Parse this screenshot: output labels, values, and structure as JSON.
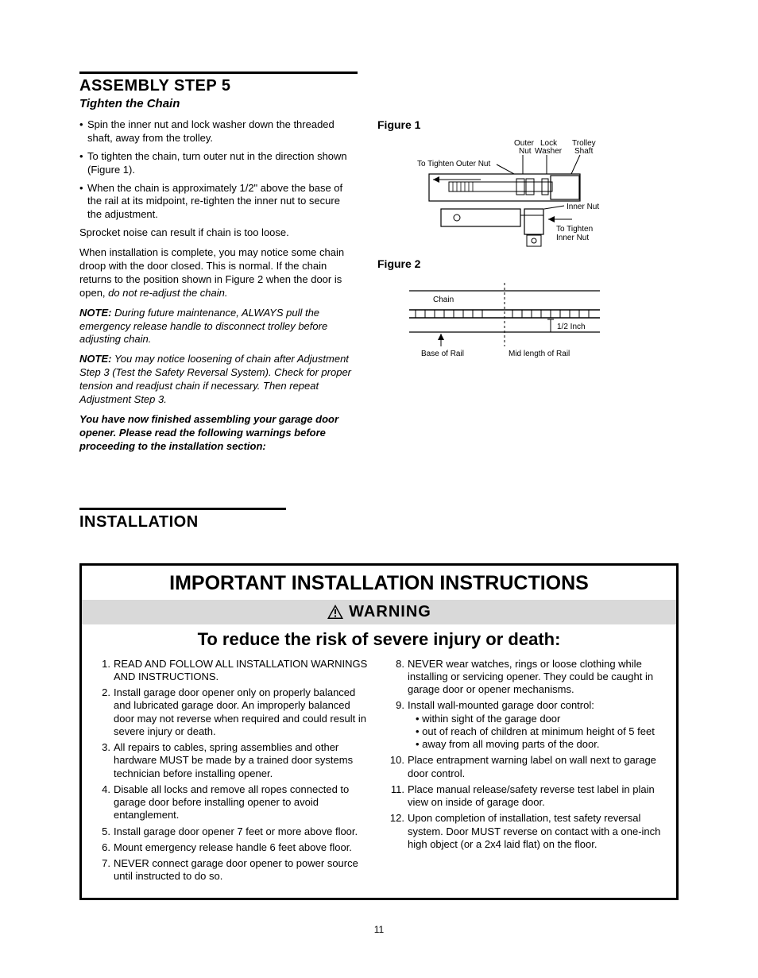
{
  "step": {
    "title": "ASSEMBLY STEP 5",
    "subtitle": "Tighten the Chain",
    "bullets": [
      "Spin the inner nut and lock washer down the threaded shaft, away from the trolley.",
      "To tighten the chain, turn outer nut in the direction shown (Figure 1).",
      "When the chain is approximately 1/2\" above the base of the rail at its midpoint, re-tighten the inner nut to secure the adjustment."
    ],
    "p1": "Sprocket noise can result if chain is too loose.",
    "p2a": "When installation is complete, you may notice some chain droop with the door closed. This is normal. If the chain returns to the position shown in Figure 2 when the door is open, ",
    "p2b": "do not re-adjust the chain.",
    "note1label": "NOTE:",
    "note1": " During future maintenance, ALWAYS pull the emergency release handle to disconnect trolley before adjusting chain.",
    "note2label": "NOTE:",
    "note2": " You may notice loosening of chain after Adjustment Step 3 (Test the Safety Reversal System). Check for proper tension and readjust chain if necessary. Then repeat Adjustment Step 3.",
    "finish": "You have now finished assembling your garage door opener. Please read the following warnings before proceeding to the installation section:"
  },
  "figures": {
    "f1": {
      "label": "Figure 1",
      "outerNut": "Outer\nNut",
      "lockWasher": "Lock\nWasher",
      "trolleyShaft": "Trolley\nShaft",
      "toTightenOuter": "To Tighten Outer Nut",
      "innerNut": "Inner Nut",
      "toTightenInner": "To Tighten\nInner Nut"
    },
    "f2": {
      "label": "Figure 2",
      "chain": "Chain",
      "halfInch": "1/2 Inch",
      "baseOfRail": "Base of Rail",
      "midLength": "Mid length of Rail"
    }
  },
  "installation": {
    "title": "INSTALLATION"
  },
  "warning": {
    "h1": "IMPORTANT INSTALLATION INSTRUCTIONS",
    "barLabel": "WARNING",
    "h2": "To reduce the risk of severe injury or death:",
    "left": [
      {
        "n": "1.",
        "t": "READ AND FOLLOW ALL INSTALLATION WARNINGS AND INSTRUCTIONS."
      },
      {
        "n": "2.",
        "t": "Install garage door opener only on properly balanced and lubricated garage door. An improperly balanced door may not reverse when required and could result in severe injury or death."
      },
      {
        "n": "3.",
        "t": "All repairs to cables, spring assemblies and other hardware MUST be made by a trained door systems technician before installing opener."
      },
      {
        "n": "4.",
        "t": "Disable all locks and remove all ropes connected to garage door before installing opener to avoid entanglement."
      },
      {
        "n": "5.",
        "t": "Install garage door opener 7 feet or more above floor."
      },
      {
        "n": "6.",
        "t": "Mount emergency release handle 6 feet above floor."
      },
      {
        "n": "7.",
        "t": "NEVER connect garage door opener to power source until instructed to do so."
      }
    ],
    "right": [
      {
        "n": "8.",
        "t": "NEVER wear watches, rings or loose clothing while installing or servicing opener. They could be caught in garage door or opener mechanisms."
      },
      {
        "n": "9.",
        "t": "Install wall-mounted garage door control:",
        "sub": [
          "within sight of the garage door",
          "out of reach of children at minimum height of 5 feet",
          "away from all moving parts of the door."
        ]
      },
      {
        "n": "10.",
        "t": "Place entrapment warning label on wall next to garage door control."
      },
      {
        "n": "11.",
        "t": "Place manual release/safety reverse test label in plain view on inside of garage door."
      },
      {
        "n": "12.",
        "t": "Upon completion of installation, test safety reversal system. Door MUST reverse on contact with a one-inch high object (or a 2x4 laid flat) on the floor."
      }
    ]
  },
  "pageNumber": "11",
  "colors": {
    "text": "#000000",
    "bg": "#ffffff",
    "warnBar": "#d9d9d9",
    "border": "#000000"
  }
}
